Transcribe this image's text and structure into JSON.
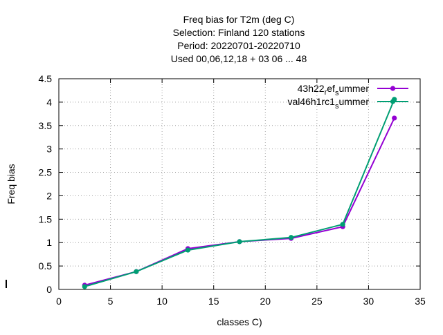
{
  "chart_data": {
    "type": "line",
    "title_lines": [
      "Freq bias  for T2m (deg C)",
      "Selection: Finland     120 stations",
      "Period: 20220701-20220710",
      "Used  00,06,12,18  + 03 06 ... 48"
    ],
    "xlabel": "classes C)",
    "ylabel": "Freq bias",
    "xlim": [
      0,
      35
    ],
    "ylim": [
      0,
      4.5
    ],
    "xticks": [
      0,
      5,
      10,
      15,
      20,
      25,
      30,
      35
    ],
    "yticks": [
      0,
      0.5,
      1,
      1.5,
      2,
      2.5,
      3,
      3.5,
      4,
      4.5
    ],
    "grid": true,
    "legend_position": "top-right",
    "series": [
      {
        "name_parts": [
          "43h22",
          "r",
          "ef",
          "s",
          "ummer"
        ],
        "color": "#9400d3",
        "marker": "filled-circle",
        "x": [
          2.5,
          7.5,
          12.5,
          17.5,
          22.5,
          27.5,
          32.5
        ],
        "y": [
          0.09,
          0.38,
          0.87,
          1.02,
          1.09,
          1.34,
          3.66
        ]
      },
      {
        "name_parts": [
          "val46h1rc1",
          "s",
          "ummer"
        ],
        "color": "#009e73",
        "marker": "filled-circle",
        "x": [
          2.5,
          7.5,
          12.5,
          17.5,
          22.5,
          27.5,
          32.5
        ],
        "y": [
          0.06,
          0.38,
          0.84,
          1.02,
          1.11,
          1.39,
          4.06
        ]
      }
    ]
  }
}
